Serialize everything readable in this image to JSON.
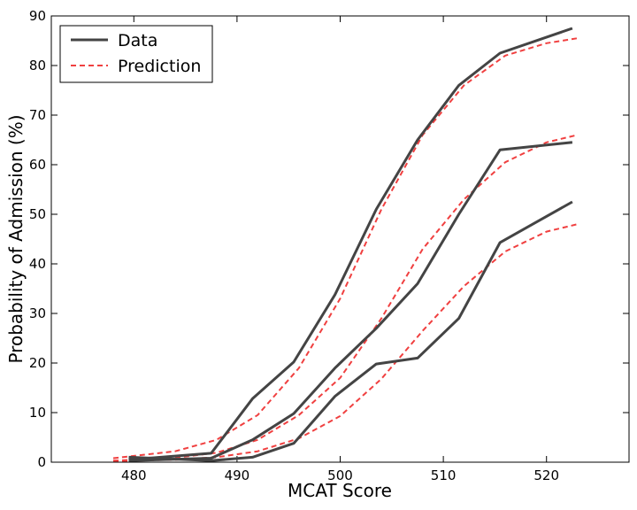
{
  "chart_data": {
    "type": "line",
    "xlabel": "MCAT Score",
    "ylabel": "Probability of Admission (%)",
    "xlim": [
      472,
      528
    ],
    "ylim": [
      0,
      90
    ],
    "xticks": [
      480,
      490,
      500,
      510,
      520
    ],
    "yticks": [
      0,
      10,
      20,
      30,
      40,
      50,
      60,
      70,
      80,
      90
    ],
    "legend": {
      "placement": "top-left",
      "entries": [
        {
          "label": "Data",
          "color": "#444444",
          "style": "solid"
        },
        {
          "label": "Prediction",
          "color": "#f04040",
          "style": "dashed"
        }
      ]
    },
    "series": [
      {
        "group": "Data",
        "color": "#444444",
        "style": "solid",
        "x": [
          479.5,
          487.5,
          491.5,
          495.5,
          499.5,
          503.5,
          507.5,
          511.5,
          515.5,
          522.5
        ],
        "y": [
          0.5,
          1.8,
          12.8,
          20.2,
          33.8,
          51.0,
          65.0,
          76.0,
          82.5,
          87.5
        ]
      },
      {
        "group": "Data",
        "color": "#444444",
        "style": "solid",
        "x": [
          479.5,
          487.5,
          491.5,
          495.5,
          499.5,
          503.5,
          507.5,
          511.5,
          515.5,
          522.5
        ],
        "y": [
          0.3,
          0.8,
          4.5,
          9.8,
          19.0,
          27.0,
          36.0,
          50.0,
          63.0,
          64.5
        ]
      },
      {
        "group": "Data",
        "color": "#444444",
        "style": "solid",
        "x": [
          479.5,
          487.5,
          491.5,
          495.5,
          499.5,
          503.5,
          507.5,
          511.5,
          515.5,
          522.5
        ],
        "y": [
          1.0,
          0.3,
          1.0,
          3.8,
          13.3,
          19.8,
          21.0,
          29.0,
          44.3,
          52.5
        ]
      },
      {
        "group": "Prediction",
        "color": "#f04040",
        "style": "dashed",
        "x": [
          478,
          484,
          488,
          492,
          496,
          500,
          504,
          508,
          512,
          516,
          520,
          523
        ],
        "y": [
          0.8,
          2.2,
          4.5,
          9.5,
          19.0,
          33.0,
          51.0,
          66.0,
          76.0,
          82.0,
          84.5,
          85.5
        ]
      },
      {
        "group": "Prediction",
        "color": "#f04040",
        "style": "dashed",
        "x": [
          478,
          484,
          488,
          492,
          496,
          500,
          504,
          508,
          512,
          516,
          520,
          523
        ],
        "y": [
          0.3,
          0.9,
          1.9,
          4.5,
          9.5,
          17.0,
          29.0,
          43.0,
          53.0,
          60.5,
          64.5,
          66.0
        ]
      },
      {
        "group": "Prediction",
        "color": "#f04040",
        "style": "dashed",
        "x": [
          478,
          484,
          488,
          492,
          496,
          500,
          504,
          508,
          512,
          516,
          520,
          523
        ],
        "y": [
          0.2,
          0.5,
          1.0,
          2.2,
          4.8,
          9.3,
          16.8,
          26.5,
          35.5,
          42.5,
          46.5,
          48.0
        ]
      }
    ]
  }
}
